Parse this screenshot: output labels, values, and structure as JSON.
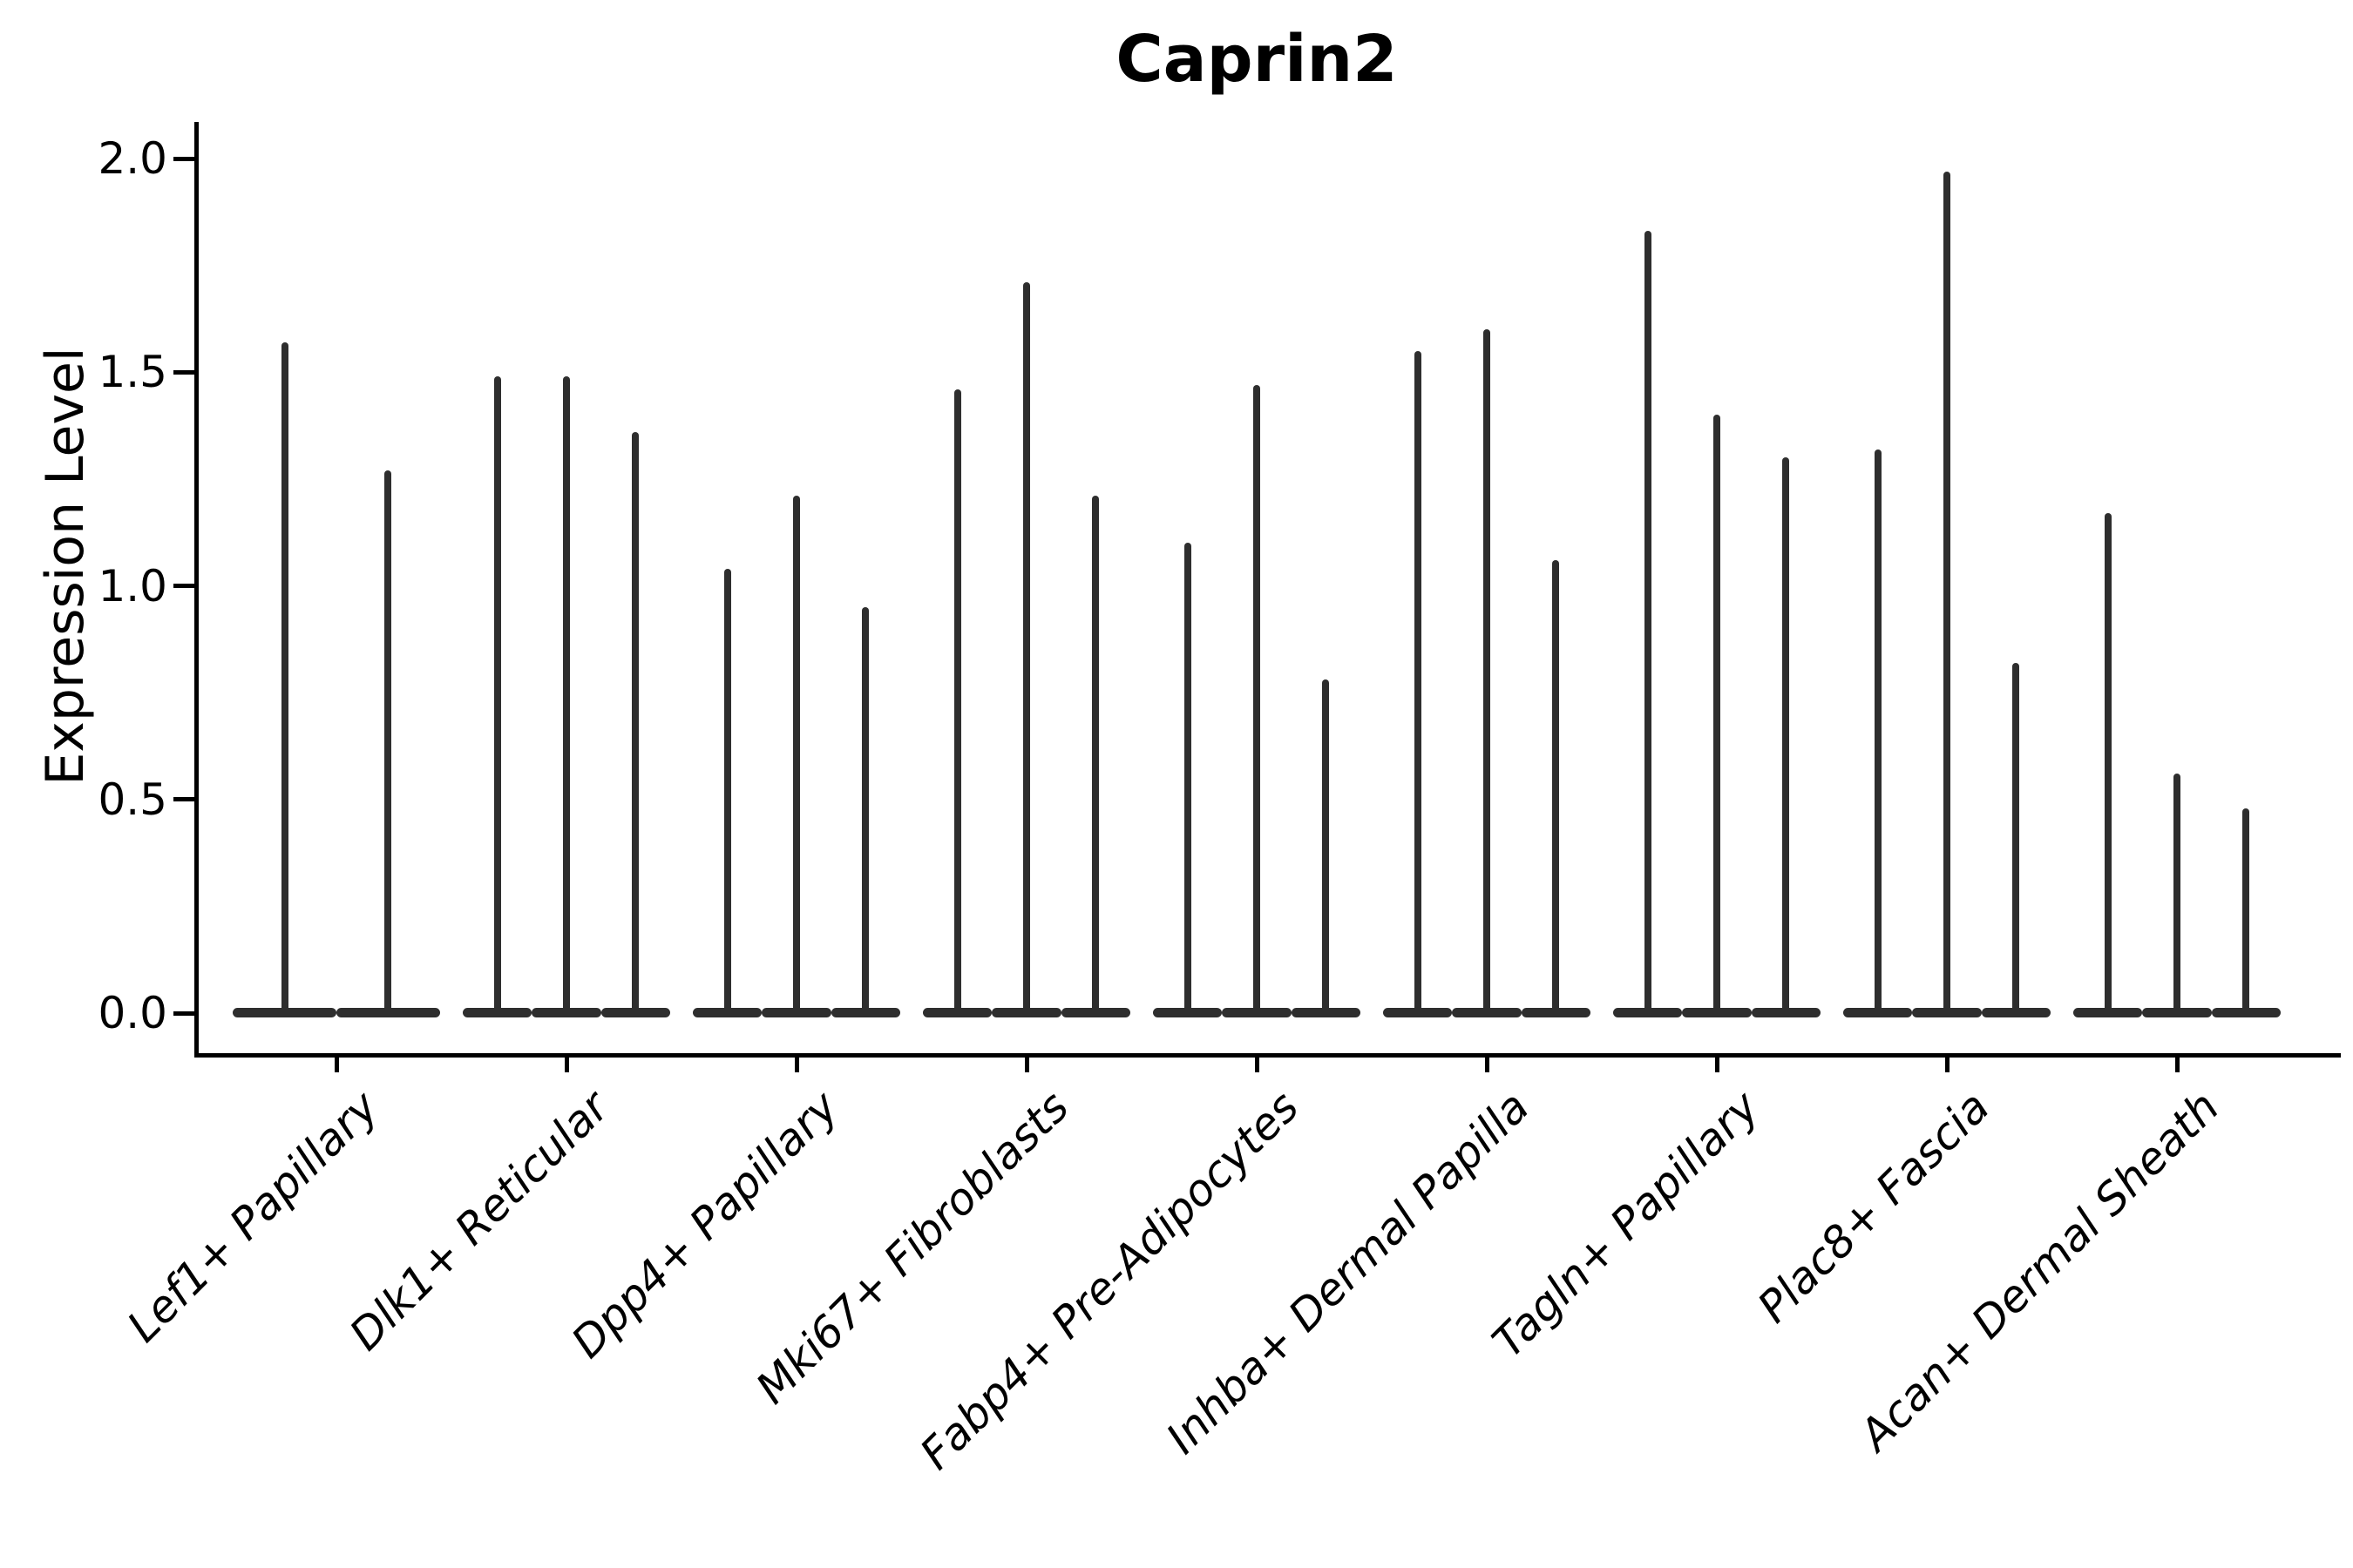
{
  "chart_data": {
    "type": "violin",
    "title": "Caprin2",
    "ylabel": "Expression Level",
    "xlabel": "",
    "y_ticks": [
      "0.0",
      "0.5",
      "1.0",
      "1.5",
      "2.0"
    ],
    "ylim": [
      0.0,
      2.12
    ],
    "grid": "off",
    "legend": "none",
    "x_tick_rotation_deg": 45,
    "violin_color": "#2e2e2e",
    "axis_color": "#000000",
    "background_color": "#ffffff",
    "categories": [
      "Lef1+ Papillary",
      "Dlk1+ Reticular",
      "Dpp4+ Papillary",
      "Mki67+ Fibroblasts",
      "Fabp4+ Pre-Adipocytes",
      "Inhba+ Dermal Papilla",
      "Tagln+ Papillary",
      "Plac8+ Fascia",
      "Acan+ Dermal Sheath"
    ],
    "series": [
      {
        "category": "Lef1+ Papillary",
        "violin_maxima": [
          1.57,
          1.27
        ]
      },
      {
        "category": "Dlk1+ Reticular",
        "violin_maxima": [
          1.49,
          1.49,
          1.36
        ]
      },
      {
        "category": "Dpp4+ Papillary",
        "violin_maxima": [
          1.04,
          1.21,
          0.95
        ]
      },
      {
        "category": "Mki67+ Fibroblasts",
        "violin_maxima": [
          1.46,
          1.71,
          1.21
        ]
      },
      {
        "category": "Fabp4+ Pre-Adipocytes",
        "violin_maxima": [
          1.1,
          1.47,
          0.78
        ]
      },
      {
        "category": "Inhba+ Dermal Papilla",
        "violin_maxima": [
          1.55,
          1.6,
          1.06
        ]
      },
      {
        "category": "Tagln+ Papillary",
        "violin_maxima": [
          1.83,
          1.4,
          1.3
        ]
      },
      {
        "category": "Plac8+ Fascia",
        "violin_maxima": [
          1.32,
          1.97,
          0.82
        ]
      },
      {
        "category": "Acan+ Dermal Sheath",
        "violin_maxima": [
          1.17,
          0.56,
          0.48
        ]
      }
    ]
  }
}
